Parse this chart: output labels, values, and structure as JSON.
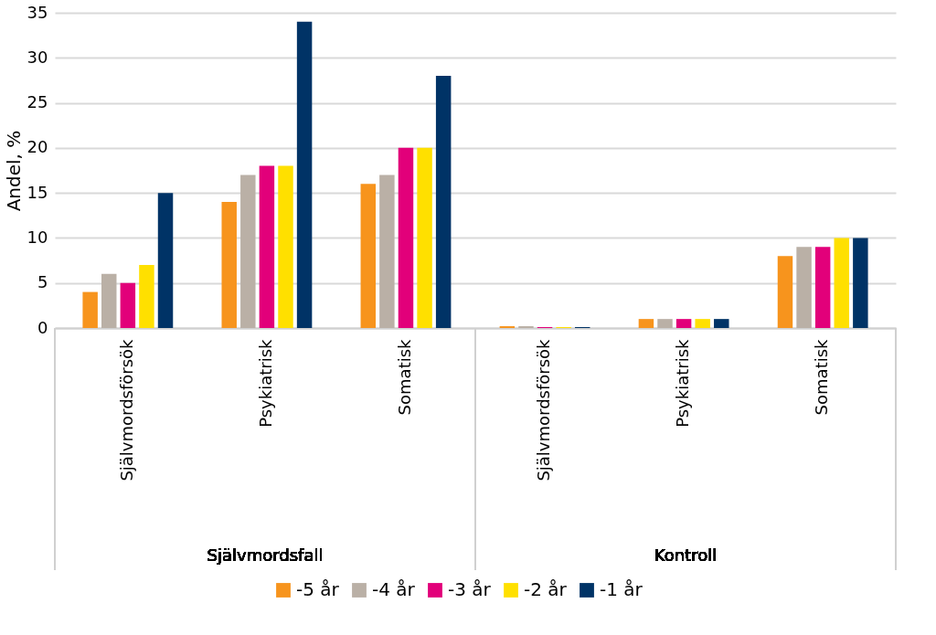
{
  "chart_data": {
    "type": "bar",
    "ylabel": "Andel, %",
    "categories": [
      "Självmordsförsök",
      "Psykiatrisk",
      "Somatisk",
      "Självmordsförsök",
      "Psykiatrisk",
      "Somatisk"
    ],
    "series": [
      {
        "name": "-5 år",
        "color": "#f7941d",
        "values": [
          4,
          14,
          16,
          0.2,
          1,
          8
        ]
      },
      {
        "name": "-4 år",
        "color": "#bab0a6",
        "values": [
          6,
          17,
          17,
          0.2,
          1,
          9
        ]
      },
      {
        "name": "-3 år",
        "color": "#e2007a",
        "values": [
          5,
          18,
          20,
          0.1,
          1,
          9
        ]
      },
      {
        "name": "-2 år",
        "color": "#ffe000",
        "values": [
          7,
          18,
          20,
          0.1,
          1,
          10
        ]
      },
      {
        "name": "-1 år",
        "color": "#003366",
        "values": [
          15,
          34,
          28,
          0.1,
          1,
          10
        ]
      }
    ],
    "annotations": [
      "Självmordsfall",
      "Kontroll"
    ],
    "ylim": [
      0,
      35
    ],
    "yticks": [
      0,
      5,
      10,
      15,
      20,
      25,
      30,
      35
    ],
    "grid": "y",
    "legend": "bottom"
  }
}
